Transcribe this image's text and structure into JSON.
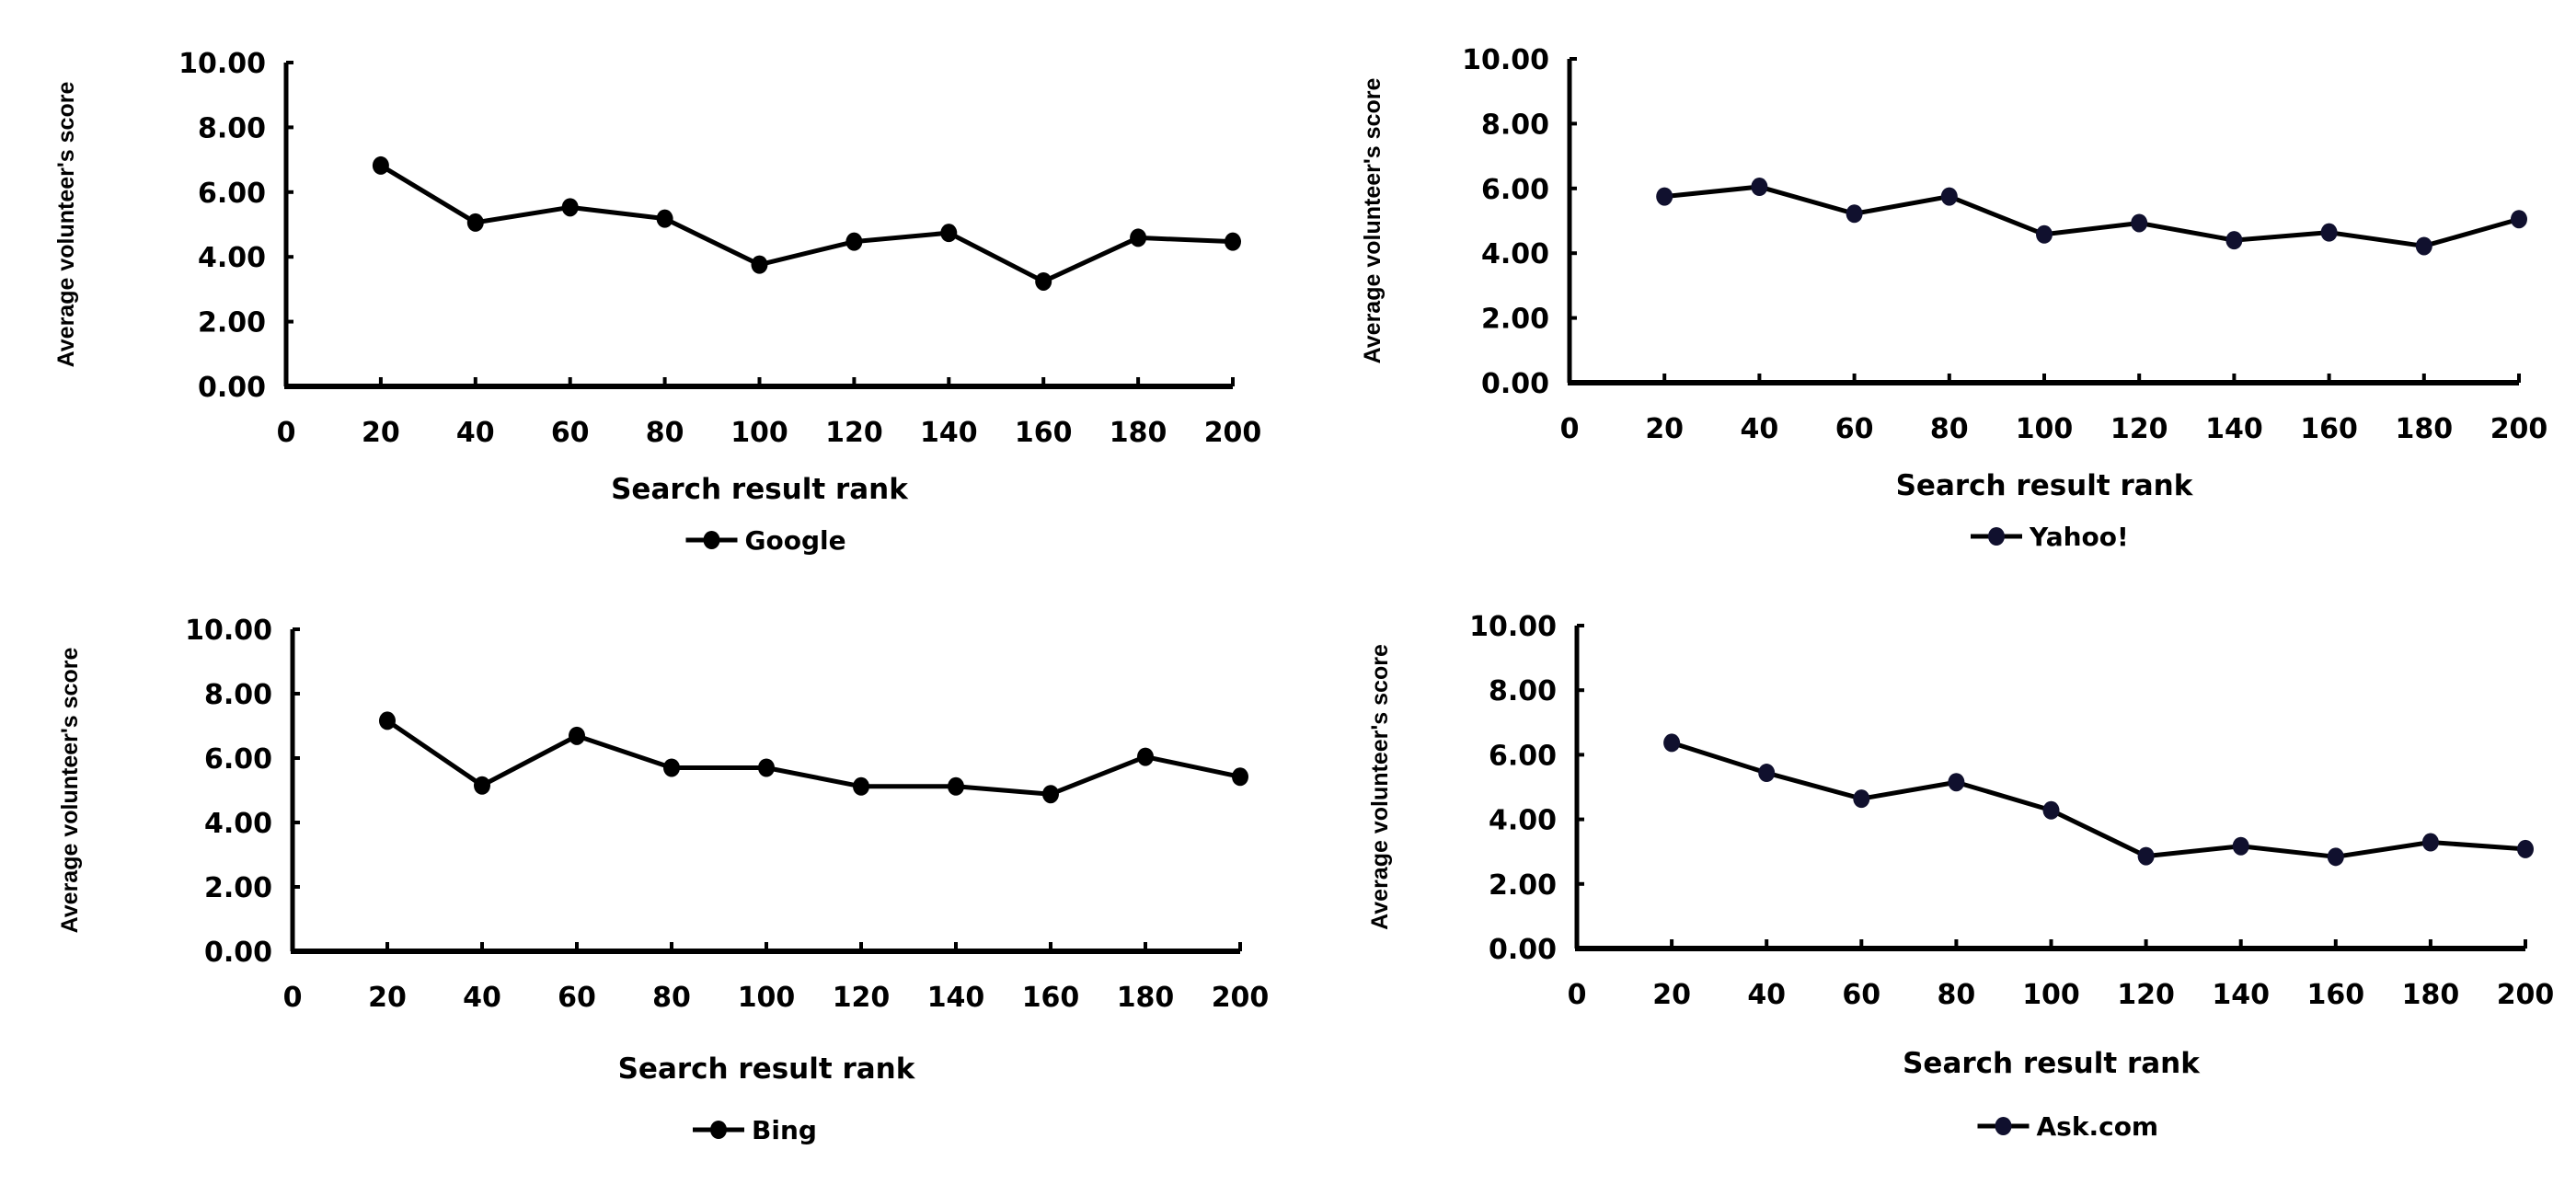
{
  "chart_data": [
    {
      "type": "line",
      "legend": "Google",
      "xlabel": "Search result rank",
      "ylabel": "Average volunteer's score",
      "x_ticks": [
        "0",
        "20",
        "40",
        "60",
        "80",
        "100",
        "120",
        "140",
        "160",
        "180",
        "200"
      ],
      "y_ticks": [
        "0.00",
        "2.00",
        "4.00",
        "6.00",
        "8.00",
        "10.00"
      ],
      "xlim": [
        0,
        200
      ],
      "ylim": [
        0,
        10
      ],
      "legend_position": "bottom",
      "marker_color": "#000000",
      "x": [
        20,
        40,
        60,
        80,
        100,
        120,
        140,
        160,
        180,
        200
      ],
      "values": [
        6.82,
        5.06,
        5.53,
        5.18,
        3.76,
        4.47,
        4.74,
        3.24,
        4.59,
        4.47
      ]
    },
    {
      "type": "line",
      "legend": "Yahoo!",
      "xlabel": "Search result rank",
      "ylabel": "Average volunteer's score",
      "x_ticks": [
        "0",
        "20",
        "40",
        "60",
        "80",
        "100",
        "120",
        "140",
        "160",
        "180",
        "200"
      ],
      "y_ticks": [
        "0.00",
        "2.00",
        "4.00",
        "6.00",
        "8.00",
        "10.00"
      ],
      "xlim": [
        0,
        200
      ],
      "ylim": [
        0,
        10
      ],
      "legend_position": "bottom",
      "marker_color": "#10102e",
      "x": [
        20,
        40,
        60,
        80,
        100,
        120,
        140,
        160,
        180,
        200
      ],
      "values": [
        5.75,
        6.05,
        5.22,
        5.75,
        4.58,
        4.93,
        4.4,
        4.64,
        4.22,
        5.05
      ]
    },
    {
      "type": "line",
      "legend": "Bing",
      "xlabel": "Search result rank",
      "ylabel": "Average volunteer's score",
      "x_ticks": [
        "0",
        "20",
        "40",
        "60",
        "80",
        "100",
        "120",
        "140",
        "160",
        "180",
        "200"
      ],
      "y_ticks": [
        "0.00",
        "2.00",
        "4.00",
        "6.00",
        "8.00",
        "10.00"
      ],
      "xlim": [
        0,
        200
      ],
      "ylim": [
        0,
        10
      ],
      "legend_position": "bottom",
      "marker_color": "#000000",
      "x": [
        20,
        40,
        60,
        80,
        100,
        120,
        140,
        160,
        180,
        200
      ],
      "values": [
        7.16,
        5.15,
        6.69,
        5.7,
        5.7,
        5.12,
        5.12,
        4.88,
        6.04,
        5.42
      ]
    },
    {
      "type": "line",
      "legend": "Ask.com",
      "xlabel": "Search result rank",
      "ylabel": "Average volunteer's score",
      "x_ticks": [
        "0",
        "20",
        "40",
        "60",
        "80",
        "100",
        "120",
        "140",
        "160",
        "180",
        "200"
      ],
      "y_ticks": [
        "0.00",
        "2.00",
        "4.00",
        "6.00",
        "8.00",
        "10.00"
      ],
      "xlim": [
        0,
        200
      ],
      "ylim": [
        0,
        10
      ],
      "legend_position": "bottom",
      "marker_color": "#10102e",
      "x": [
        20,
        40,
        60,
        80,
        100,
        120,
        140,
        160,
        180,
        200
      ],
      "values": [
        6.37,
        5.44,
        4.64,
        5.15,
        4.28,
        2.86,
        3.17,
        2.84,
        3.29,
        3.08
      ]
    }
  ]
}
